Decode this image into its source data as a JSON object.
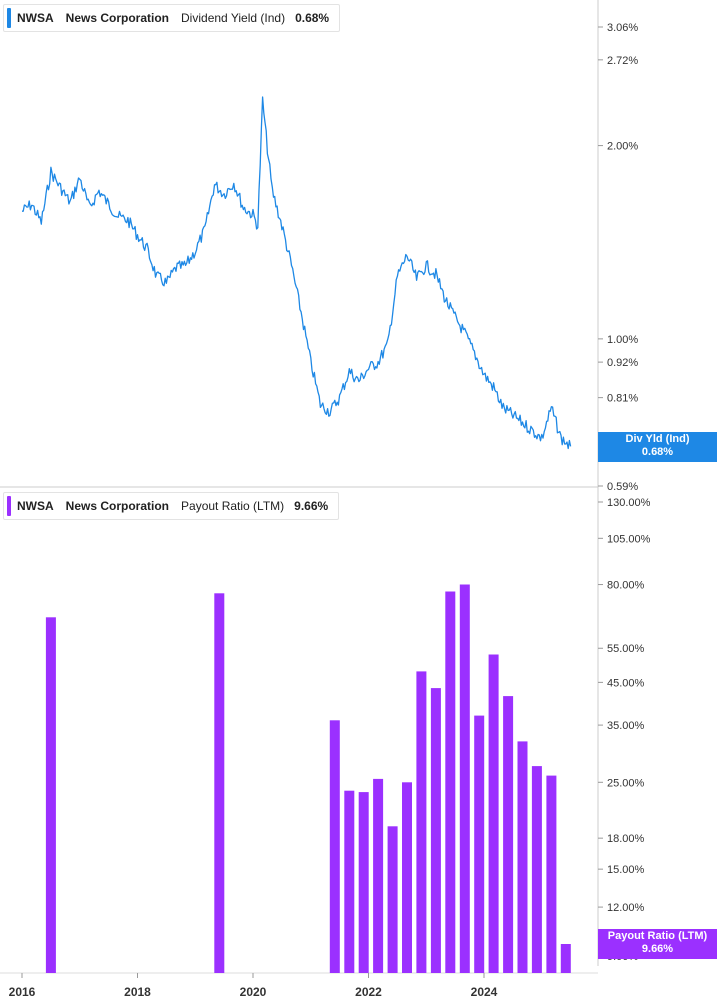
{
  "chart_data": [
    {
      "type": "line",
      "ticker": "NWSA",
      "company": "News Corporation",
      "metric": "Dividend Yield (Ind)",
      "current_value": "0.68%",
      "tag_label": "Div Yld (Ind)",
      "tag_value": "0.68%",
      "color": "#1e88e5",
      "y_scale": "log",
      "ylim": [
        0.59,
        3.35
      ],
      "y_ticks": [
        "3.06%",
        "2.72%",
        "2.00%",
        "1.00%",
        "0.92%",
        "0.81%",
        "0.59%"
      ],
      "y_tick_values": [
        3.06,
        2.72,
        2.0,
        1.0,
        0.92,
        0.81,
        0.59
      ],
      "x": [
        "2016-01",
        "2016-03",
        "2016-05",
        "2016-07",
        "2016-09",
        "2016-11",
        "2017-01",
        "2017-03",
        "2017-05",
        "2017-07",
        "2017-09",
        "2017-11",
        "2018-01",
        "2018-03",
        "2018-05",
        "2018-07",
        "2018-09",
        "2018-11",
        "2019-01",
        "2019-03",
        "2019-05",
        "2019-07",
        "2019-09",
        "2019-11",
        "2020-01",
        "2020-02",
        "2020-03",
        "2020-04",
        "2020-05",
        "2020-07",
        "2020-09",
        "2020-11",
        "2021-01",
        "2021-03",
        "2021-05",
        "2021-07",
        "2021-09",
        "2021-11",
        "2022-01",
        "2022-03",
        "2022-05",
        "2022-07",
        "2022-09",
        "2022-11",
        "2023-01",
        "2023-03",
        "2023-05",
        "2023-07",
        "2023-09",
        "2023-11",
        "2024-01",
        "2024-03",
        "2024-05",
        "2024-07",
        "2024-09",
        "2024-11",
        "2025-01",
        "2025-03",
        "2025-05",
        "2025-07"
      ],
      "y": [
        1.58,
        1.62,
        1.52,
        1.82,
        1.72,
        1.63,
        1.78,
        1.6,
        1.7,
        1.62,
        1.55,
        1.53,
        1.45,
        1.38,
        1.25,
        1.22,
        1.29,
        1.3,
        1.37,
        1.48,
        1.74,
        1.68,
        1.75,
        1.6,
        1.56,
        1.5,
        2.35,
        1.98,
        1.7,
        1.5,
        1.3,
        1.1,
        0.92,
        0.79,
        0.77,
        0.81,
        0.89,
        0.86,
        0.9,
        0.92,
        0.98,
        1.25,
        1.35,
        1.24,
        1.3,
        1.26,
        1.15,
        1.08,
        1.02,
        0.95,
        0.88,
        0.84,
        0.78,
        0.76,
        0.74,
        0.72,
        0.7,
        0.78,
        0.7,
        0.68
      ]
    },
    {
      "type": "bar",
      "ticker": "NWSA",
      "company": "News Corporation",
      "metric": "Payout Ratio (LTM)",
      "current_value": "9.66%",
      "tag_label": "Payout Ratio (LTM)",
      "tag_value": "9.66%",
      "color": "#9b30ff",
      "y_scale": "log",
      "ylim": [
        8.0,
        130.0
      ],
      "y_ticks": [
        "130.00%",
        "105.00%",
        "80.00%",
        "55.00%",
        "45.00%",
        "35.00%",
        "25.00%",
        "18.00%",
        "15.00%",
        "12.00%",
        "9.00%"
      ],
      "y_tick_values": [
        130,
        105,
        80,
        55,
        45,
        35,
        25,
        18,
        15,
        12,
        9
      ],
      "categories": [
        "2016-07",
        "2019-06",
        "2021-06",
        "2021-09",
        "2021-12",
        "2022-03",
        "2022-06",
        "2022-09",
        "2022-12",
        "2023-03",
        "2023-06",
        "2023-09",
        "2023-12",
        "2024-03",
        "2024-06",
        "2024-09",
        "2024-12",
        "2025-03",
        "2025-06"
      ],
      "values": [
        66.0,
        76.0,
        36.0,
        23.8,
        23.6,
        25.5,
        19.3,
        25.0,
        48.0,
        43.5,
        76.8,
        80.0,
        37.0,
        53.0,
        41.5,
        31.8,
        27.5,
        26.0,
        9.66
      ]
    }
  ],
  "x_axis": {
    "labels": [
      "2016",
      "2018",
      "2020",
      "2022",
      "2024"
    ],
    "years": [
      2016,
      2018,
      2020,
      2022,
      2024
    ]
  }
}
